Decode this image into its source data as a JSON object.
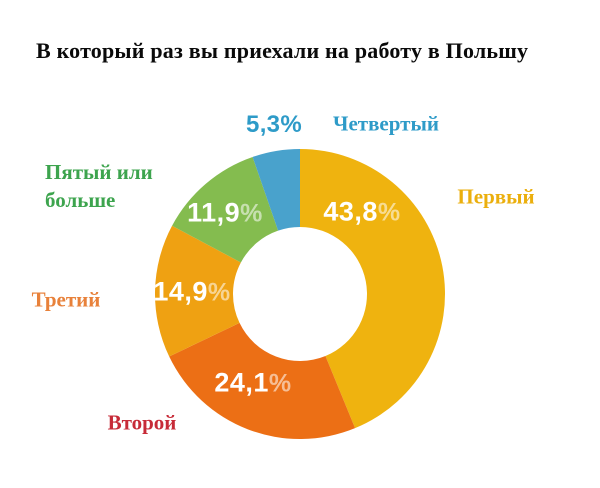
{
  "page": {
    "background": "#ffffff"
  },
  "chart_data": {
    "type": "pie",
    "variant": "donut",
    "title": "В который раз вы приехали на работу в Польшу",
    "unit": "%",
    "start_angle_deg": 0,
    "direction": "clockwise",
    "legend_position": "around",
    "slices": [
      {
        "key": "first",
        "label": "Первый",
        "value": 43.8,
        "value_label": "43,8",
        "color": "#EFB30F",
        "label_color": "#EBAF0D",
        "value_label_color": "#FFFFFF",
        "value_label_position": "inside"
      },
      {
        "key": "second",
        "label": "Второй",
        "value": 24.1,
        "value_label": "24,1",
        "color": "#EC6F15",
        "label_color": "#C72B38",
        "value_label_color": "#FFFFFF",
        "value_label_position": "inside"
      },
      {
        "key": "third",
        "label": "Третий",
        "value": 14.9,
        "value_label": "14,9",
        "color": "#EFA112",
        "label_color": "#E8813A",
        "value_label_color": "#FFFFFF",
        "value_label_position": "inside"
      },
      {
        "key": "fifth-or-more",
        "label": "Пятый или больше",
        "value": 11.9,
        "value_label": "11,9",
        "color": "#84BC4F",
        "label_color": "#3DA44E",
        "value_label_color": "#FFFFFF",
        "value_label_position": "inside"
      },
      {
        "key": "fourth",
        "label": "Четвертый",
        "value": 5.3,
        "value_label": "5,3",
        "color": "#49A2CC",
        "label_color": "#2E9BC8",
        "value_label_color": "#2E9BC8",
        "value_label_position": "outside"
      }
    ]
  }
}
